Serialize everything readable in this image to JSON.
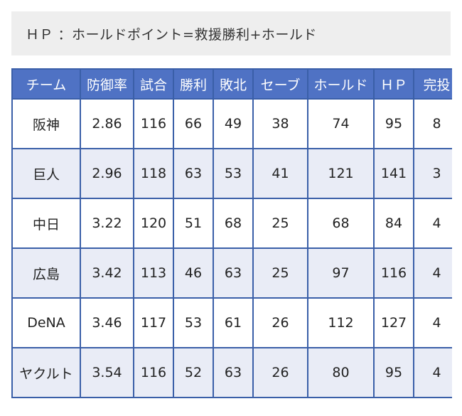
{
  "note": "ＨＰ ：ホールドポイント=救援勝利+ホールド",
  "table": {
    "headers": [
      "チーム",
      "防御率",
      "試合",
      "勝利",
      "敗北",
      "セーブ",
      "ホールド",
      "ＨＰ",
      "完投"
    ],
    "rows": [
      [
        "阪神",
        "2.86",
        "116",
        "66",
        "49",
        "38",
        "74",
        "95",
        "8"
      ],
      [
        "巨人",
        "2.96",
        "118",
        "63",
        "53",
        "41",
        "121",
        "141",
        "3"
      ],
      [
        "中日",
        "3.22",
        "120",
        "51",
        "68",
        "25",
        "68",
        "84",
        "4"
      ],
      [
        "広島",
        "3.42",
        "113",
        "46",
        "63",
        "25",
        "97",
        "116",
        "4"
      ],
      [
        "DeNA",
        "3.46",
        "117",
        "53",
        "61",
        "26",
        "112",
        "127",
        "4"
      ],
      [
        "ヤクルト",
        "3.54",
        "116",
        "52",
        "63",
        "26",
        "80",
        "95",
        "4"
      ]
    ]
  },
  "colors": {
    "header_bg": "#4f72c4",
    "border": "#3a5fa8",
    "alt_row_bg": "#e9ecf6",
    "note_bg": "#eeeeee"
  }
}
